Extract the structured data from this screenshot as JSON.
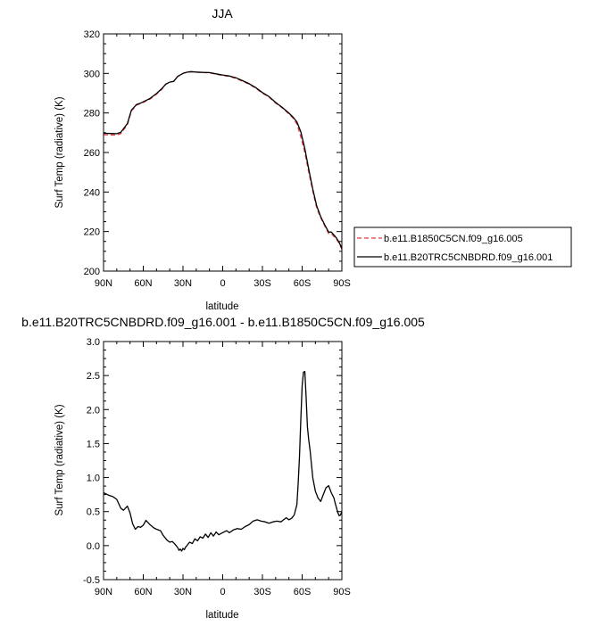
{
  "chart_data": [
    {
      "type": "line",
      "title": "JJA",
      "xlabel": "latitude",
      "ylabel": "Surf Temp (radiative) (K)",
      "xlim": [
        -90,
        90
      ],
      "ylim": [
        200,
        320
      ],
      "x_ticks": [
        -90,
        -60,
        -30,
        0,
        30,
        60,
        90
      ],
      "x_tick_labels": [
        "90N",
        "60N",
        "30N",
        "0",
        "30S",
        "60S",
        "90S"
      ],
      "y_ticks": [
        200,
        220,
        240,
        260,
        280,
        300,
        320
      ],
      "y_tick_labels": [
        "200",
        "220",
        "240",
        "260",
        "280",
        "300",
        "320"
      ],
      "legend_position": "right",
      "x": [
        -90,
        -85,
        -80,
        -77,
        -72,
        -69,
        -65,
        -62,
        -58,
        -55,
        -50,
        -46,
        -43,
        -40,
        -37,
        -34,
        -30,
        -27,
        -24,
        -20,
        -15,
        -10,
        -5,
        0,
        5,
        10,
        15,
        20,
        25,
        30,
        35,
        40,
        45,
        50,
        53,
        56,
        59,
        62,
        65,
        68,
        71,
        74,
        77,
        80,
        82,
        84,
        86,
        88,
        90
      ],
      "series": [
        {
          "name": "b.e11.B1850C5CN.f09_g16.005",
          "color": "#e8383f",
          "dash": "dashed",
          "values": [
            269,
            268.9,
            268.8,
            269.5,
            274,
            281,
            284,
            284.7,
            286,
            287,
            289.5,
            292,
            294.5,
            295.5,
            296,
            298.5,
            300,
            300.6,
            300.8,
            300.6,
            300.4,
            300.3,
            299.6,
            299,
            298.5,
            297.5,
            296,
            294.5,
            292.5,
            290,
            288,
            285,
            282.5,
            279.5,
            277.5,
            274.5,
            268,
            260,
            250,
            240.5,
            232,
            227,
            223,
            219,
            219,
            217.5,
            216,
            214,
            211
          ]
        },
        {
          "name": "b.e11.B20TRC5CNBDRD.f09_g16.001",
          "color": "#000000",
          "dash": "solid",
          "values": [
            269.7,
            269.6,
            269.5,
            270.2,
            274.6,
            281.4,
            284.3,
            285,
            286.3,
            287.3,
            289.8,
            292.3,
            294.6,
            295.6,
            296,
            298.5,
            300,
            300.6,
            300.9,
            300.7,
            300.5,
            300.4,
            299.8,
            299.2,
            298.7,
            297.8,
            296.3,
            294.8,
            292.8,
            290.3,
            288.3,
            285.3,
            282.8,
            279.9,
            278,
            275.5,
            270.5,
            262,
            251.5,
            241.5,
            233,
            227.5,
            223.5,
            219.7,
            219.8,
            218.3,
            216.6,
            214.5,
            211.5
          ]
        }
      ]
    },
    {
      "type": "line",
      "title": "b.e11.B20TRC5CNBDRD.f09_g16.001 - b.e11.B1850C5CN.f09_g16.005",
      "xlabel": "latitude",
      "ylabel": "Surf Temp (radiative) (K)",
      "xlim": [
        -90,
        90
      ],
      "ylim": [
        -0.5,
        3.0
      ],
      "x_ticks": [
        -90,
        -60,
        -30,
        0,
        30,
        60,
        90
      ],
      "x_tick_labels": [
        "90N",
        "60N",
        "30N",
        "0",
        "30S",
        "60S",
        "90S"
      ],
      "y_ticks": [
        -0.5,
        0.0,
        0.5,
        1.0,
        1.5,
        2.0,
        2.5,
        3.0
      ],
      "y_tick_labels": [
        "-0.5",
        "0.0",
        "0.5",
        "1.0",
        "1.5",
        "2.0",
        "2.5",
        "3.0"
      ],
      "x": [
        -90,
        -86,
        -83,
        -80,
        -77,
        -75,
        -72,
        -70,
        -68,
        -66,
        -64,
        -62,
        -60,
        -58,
        -55,
        -52,
        -50,
        -47,
        -45,
        -42,
        -40,
        -38,
        -36,
        -34,
        -33,
        -32,
        -31,
        -30,
        -29,
        -28,
        -27,
        -25,
        -23,
        -21,
        -19,
        -17,
        -15,
        -13,
        -11,
        -9,
        -7,
        -5,
        -3,
        -1,
        1,
        3,
        5,
        8,
        11,
        14,
        17,
        20,
        23,
        26,
        29,
        32,
        35,
        38,
        41,
        44,
        46,
        48,
        50,
        52,
        54,
        56,
        57,
        58,
        59,
        60,
        61,
        62,
        63,
        64,
        65,
        66,
        67,
        68,
        70,
        72,
        74,
        76,
        78,
        80,
        82,
        84,
        85,
        86,
        87,
        88,
        89,
        90
      ],
      "series": [
        {
          "name": "",
          "color": "#000000",
          "dash": "solid",
          "values": [
            0.78,
            0.74,
            0.72,
            0.68,
            0.55,
            0.52,
            0.58,
            0.48,
            0.32,
            0.24,
            0.28,
            0.27,
            0.3,
            0.37,
            0.31,
            0.26,
            0.24,
            0.22,
            0.15,
            0.08,
            0.05,
            0.06,
            0.02,
            -0.03,
            -0.07,
            -0.05,
            -0.08,
            -0.04,
            -0.06,
            -0.02,
            0.0,
            0.05,
            0.03,
            0.1,
            0.07,
            0.13,
            0.11,
            0.17,
            0.12,
            0.19,
            0.14,
            0.2,
            0.16,
            0.18,
            0.2,
            0.22,
            0.19,
            0.23,
            0.25,
            0.24,
            0.28,
            0.31,
            0.36,
            0.38,
            0.36,
            0.35,
            0.33,
            0.35,
            0.36,
            0.35,
            0.38,
            0.41,
            0.38,
            0.4,
            0.45,
            0.6,
            0.9,
            1.3,
            1.85,
            2.35,
            2.55,
            2.56,
            2.2,
            1.75,
            1.55,
            1.4,
            1.2,
            1.0,
            0.8,
            0.7,
            0.65,
            0.75,
            0.85,
            0.88,
            0.78,
            0.7,
            0.62,
            0.55,
            0.48,
            0.44,
            0.45,
            0.5
          ]
        }
      ]
    }
  ]
}
